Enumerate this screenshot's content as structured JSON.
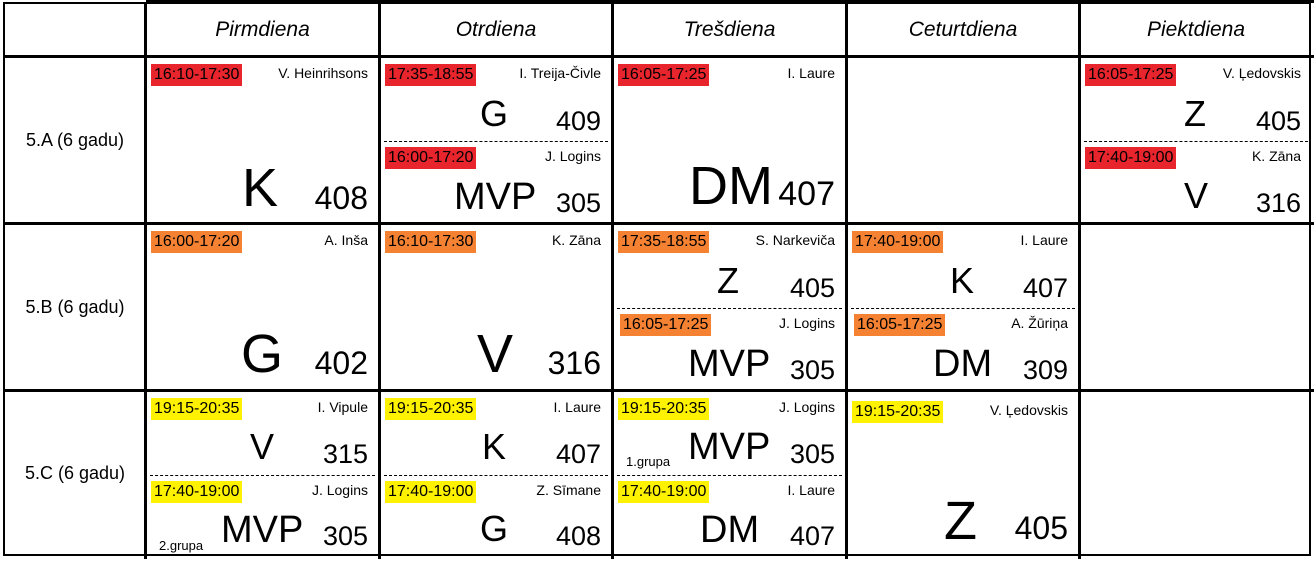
{
  "colors": {
    "row_a": "#e8242c",
    "row_b": "#f58232",
    "row_c": "#fff200"
  },
  "days": [
    "Pirmdiena",
    "Otrdiena",
    "Trešdiena",
    "Ceturtdiena",
    "Piektdiena"
  ],
  "classes": [
    "5.A (6 gadu)",
    "5.B (6 gadu)",
    "5.C (6 gadu)"
  ],
  "lessons": {
    "a_mon": {
      "time": "16:10-17:30",
      "teacher": "V. Heinrihsons",
      "subject": "K",
      "room": "408"
    },
    "a_tue1": {
      "time": "17:35-18:55",
      "teacher": "I. Treija-Čivle",
      "subject": "G",
      "room": "409"
    },
    "a_tue2": {
      "time": "16:00-17:20",
      "teacher": "J. Logins",
      "subject": "MVP",
      "room": "305"
    },
    "a_wed": {
      "time": "16:05-17:25",
      "teacher": "I. Laure",
      "subject": "DM",
      "room": "407"
    },
    "a_fri1": {
      "time": "16:05-17:25",
      "teacher": "V. Ļedovskis",
      "subject": "Z",
      "room": "405"
    },
    "a_fri2": {
      "time": "17:40-19:00",
      "teacher": "K. Zāna",
      "subject": "V",
      "room": "316"
    },
    "b_mon": {
      "time": "16:00-17:20",
      "teacher": "A. Inša",
      "subject": "G",
      "room": "402"
    },
    "b_tue": {
      "time": "16:10-17:30",
      "teacher": "K. Zāna",
      "subject": "V",
      "room": "316"
    },
    "b_wed1": {
      "time": "17:35-18:55",
      "teacher": "S. Narkeviča",
      "subject": "Z",
      "room": "405"
    },
    "b_wed2": {
      "time": "16:05-17:25",
      "teacher": "J. Logins",
      "subject": "MVP",
      "room": "305"
    },
    "b_thu1": {
      "time": "17:40-19:00",
      "teacher": "I. Laure",
      "subject": "K",
      "room": "407"
    },
    "b_thu2": {
      "time": "16:05-17:25",
      "teacher": "A. Žūriņa",
      "subject": "DM",
      "room": "309"
    },
    "c_mon1": {
      "time": "19:15-20:35",
      "teacher": "I. Vipule",
      "subject": "V",
      "room": "315"
    },
    "c_mon2": {
      "time": "17:40-19:00",
      "teacher": "J. Logins",
      "subject": "MVP",
      "room": "305",
      "note": "2.grupa"
    },
    "c_tue1": {
      "time": "19:15-20:35",
      "teacher": "I. Laure",
      "subject": "K",
      "room": "407"
    },
    "c_tue2": {
      "time": "17:40-19:00",
      "teacher": "Z. Sīmane",
      "subject": "G",
      "room": "408"
    },
    "c_wed1": {
      "time": "19:15-20:35",
      "teacher": "J. Logins",
      "subject": "MVP",
      "room": "305",
      "note": "1.grupa"
    },
    "c_wed2": {
      "time": "17:40-19:00",
      "teacher": "I. Laure",
      "subject": "DM",
      "room": "407"
    },
    "c_thu": {
      "time": "19:15-20:35",
      "teacher": "V. Ļedovskis",
      "subject": "Z",
      "room": "405"
    }
  }
}
